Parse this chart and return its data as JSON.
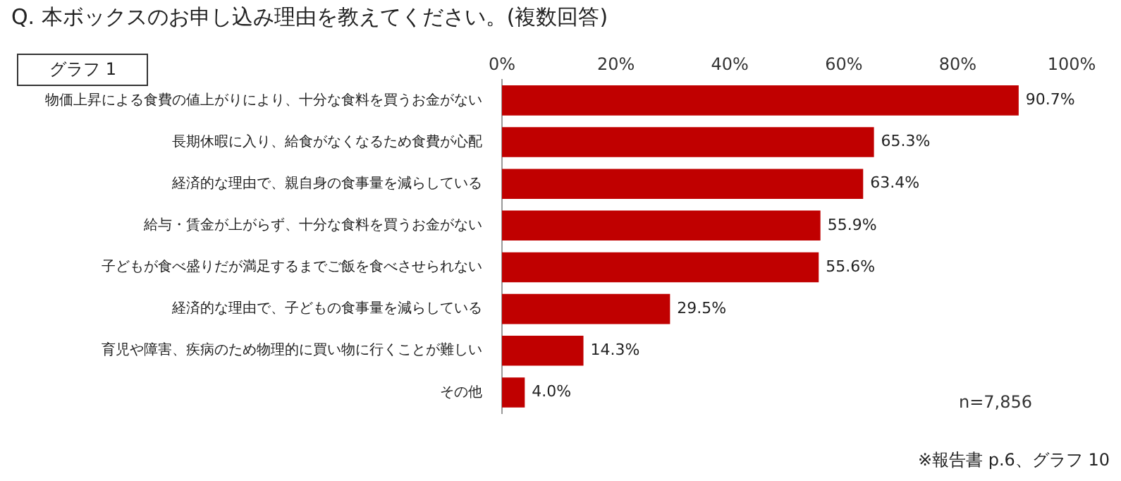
{
  "chart_data": {
    "type": "bar",
    "orientation": "horizontal",
    "title": "Q. 本ボックスのお申し込み理由を教えてください。(複数回答)",
    "categories": [
      "物価上昇による食費の値上がりにより、十分な食料を買うお金がない",
      "長期休暇に入り、給食がなくなるため食費が心配",
      "経済的な理由で、親自身の食事量を減らしている",
      "給与・賃金が上がらず、十分な食料を買うお金がない",
      "子どもが食べ盛りだが満足するまでご飯を食べさせられない",
      "経済的な理由で、子どもの食事量を減らしている",
      "育児や障害、疾病のため物理的に買い物に行くことが難しい",
      "その他"
    ],
    "values": [
      90.7,
      65.3,
      63.4,
      55.9,
      55.6,
      29.5,
      14.3,
      4.0
    ],
    "value_labels": [
      "90.7%",
      "65.3%",
      "63.4%",
      "55.9%",
      "55.6%",
      "29.5%",
      "14.3%",
      "4.0%"
    ],
    "color": "#c00000",
    "xlim": [
      0,
      100
    ],
    "xticks": [
      {
        "value": 0,
        "label": "0%"
      },
      {
        "value": 20,
        "label": "20%"
      },
      {
        "value": 40,
        "label": "40%"
      },
      {
        "value": 60,
        "label": "60%"
      },
      {
        "value": 80,
        "label": "80%"
      },
      {
        "value": 100,
        "label": "100%"
      }
    ],
    "grid": false,
    "annotations": [
      "グラフ 1",
      "n=7,856",
      "※報告書 p.6、グラフ 10"
    ]
  }
}
